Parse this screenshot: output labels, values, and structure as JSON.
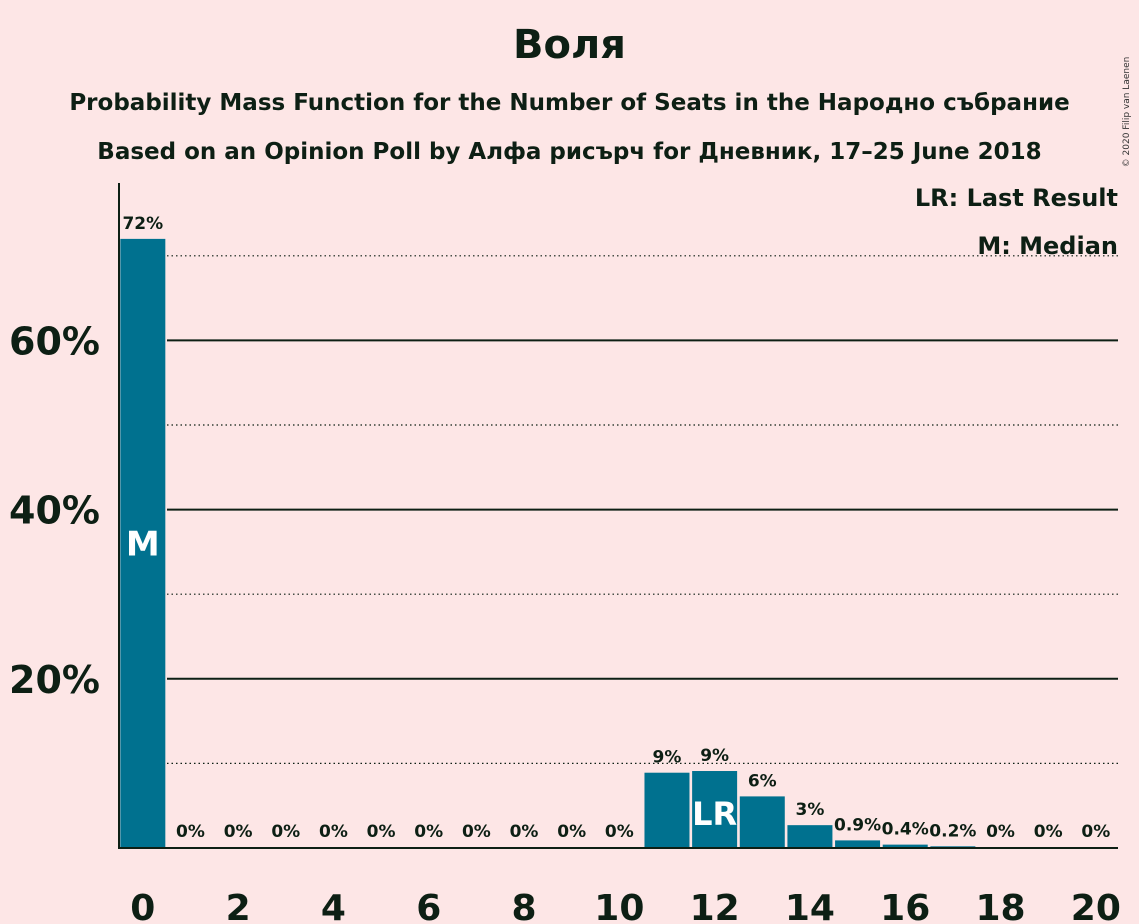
{
  "title": "Воля",
  "subtitle_1": "Probability Mass Function for the Number of Seats in the Народно събрание",
  "subtitle_2": "Based on an Opinion Poll by Алфа рисърч for Дневник, 17–25 June 2018",
  "copyright": "© 2020 Filip van Laenen",
  "legend": {
    "last_result": "LR: Last Result",
    "median": "M: Median"
  },
  "colors": {
    "background": "#FDE6E6",
    "bar": "#00718F",
    "text": "#0D1F14"
  },
  "chart_data": {
    "type": "bar",
    "categories": [
      0,
      1,
      2,
      3,
      4,
      5,
      6,
      7,
      8,
      9,
      10,
      11,
      12,
      13,
      14,
      15,
      16,
      17,
      18,
      19,
      20
    ],
    "values": [
      72,
      0,
      0,
      0,
      0,
      0,
      0,
      0,
      0,
      0,
      0,
      8.9,
      9.1,
      6.1,
      2.7,
      0.9,
      0.4,
      0.2,
      0,
      0,
      0
    ],
    "data_labels": [
      "72%",
      "0%",
      "0%",
      "0%",
      "0%",
      "0%",
      "0%",
      "0%",
      "0%",
      "0%",
      "0%",
      "9%",
      "9%",
      "6%",
      "3%",
      "0.9%",
      "0.4%",
      "0.2%",
      "0%",
      "0%",
      "0%"
    ],
    "x_tick_labels": [
      "0",
      "2",
      "4",
      "6",
      "8",
      "10",
      "12",
      "14",
      "16",
      "18",
      "20"
    ],
    "x_ticks": [
      0,
      2,
      4,
      6,
      8,
      10,
      12,
      14,
      16,
      18,
      20
    ],
    "y_tick_labels": [
      "20%",
      "40%",
      "60%"
    ],
    "y_ticks": [
      20,
      40,
      60
    ],
    "minor_gridlines": [
      10,
      30,
      50,
      70
    ],
    "ylim": [
      0,
      77
    ],
    "median_seat": 0,
    "median_marker": "M",
    "last_result_seat": 12,
    "last_result_marker": "LR",
    "grid": true,
    "legend_position": "top-right"
  }
}
